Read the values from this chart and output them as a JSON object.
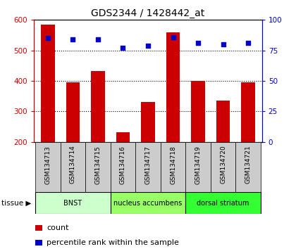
{
  "title": "GDS2344 / 1428442_at",
  "samples": [
    "GSM134713",
    "GSM134714",
    "GSM134715",
    "GSM134716",
    "GSM134717",
    "GSM134718",
    "GSM134719",
    "GSM134720",
    "GSM134721"
  ],
  "counts": [
    585,
    395,
    432,
    232,
    330,
    560,
    400,
    335,
    395
  ],
  "percentiles": [
    85,
    84,
    84,
    77,
    79,
    86,
    81,
    80,
    81
  ],
  "groups": [
    {
      "label": "BNST",
      "start": 0,
      "end": 3,
      "color": "#ccffcc"
    },
    {
      "label": "nucleus accumbens",
      "start": 3,
      "end": 6,
      "color": "#99ff66"
    },
    {
      "label": "dorsal striatum",
      "start": 6,
      "end": 9,
      "color": "#33ff33"
    }
  ],
  "tissue_label": "tissue",
  "ylim_left": [
    200,
    600
  ],
  "ylim_right": [
    0,
    100
  ],
  "yticks_left": [
    200,
    300,
    400,
    500,
    600
  ],
  "yticks_right": [
    0,
    25,
    50,
    75,
    100
  ],
  "bar_color": "#cc0000",
  "dot_color": "#0000cc",
  "left_tick_color": "#cc0000",
  "right_tick_color": "#0000cc",
  "legend_count_label": "count",
  "legend_pct_label": "percentile rank within the sample",
  "bg_sample_row": "#cccccc",
  "bar_width": 0.55
}
